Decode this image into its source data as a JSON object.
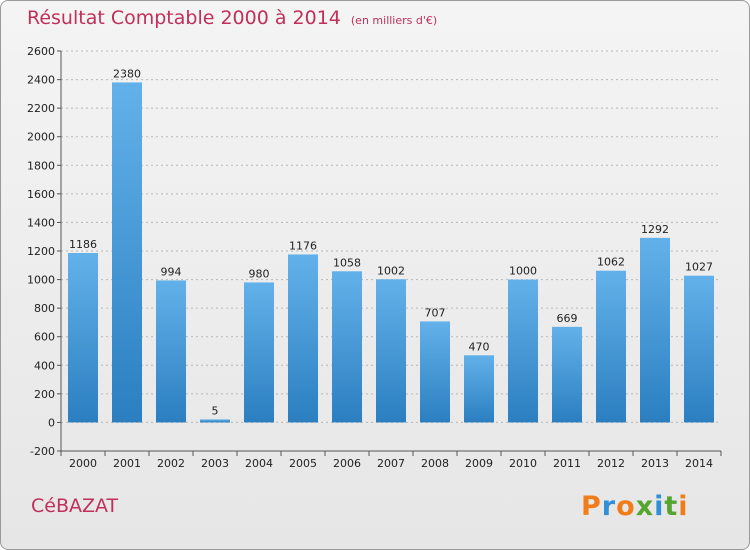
{
  "header": {
    "title": "Résultat Comptable 2000 à 2014",
    "unit": "(en milliers d'€)"
  },
  "footer": {
    "commune": "CéBAZAT",
    "brand": "Proxiti"
  },
  "colors": {
    "title": "#c0305a",
    "bar_top": "#63b1ea",
    "bar_bottom": "#2b7fc0",
    "brand_letters": [
      "#f07d1a",
      "#2f8fd8",
      "#f07d1a",
      "#55a530",
      "#2f8fd8",
      "#55a530",
      "#f07d1a"
    ]
  },
  "chart_data": {
    "type": "bar",
    "title": "Résultat Comptable 2000 à 2014",
    "subtitle": "(en milliers d'€)",
    "categories": [
      "2000",
      "2001",
      "2002",
      "2003",
      "2004",
      "2005",
      "2006",
      "2007",
      "2008",
      "2009",
      "2010",
      "2011",
      "2012",
      "2013",
      "2014"
    ],
    "values": [
      1186,
      2380,
      994,
      5,
      980,
      1176,
      1058,
      1002,
      707,
      470,
      1000,
      669,
      1062,
      1292,
      1027
    ],
    "data_labels": [
      "1186",
      "2380",
      "994",
      "5",
      "980",
      "1176",
      "1058",
      "1002",
      "707",
      "470",
      "1000",
      "669",
      "1062",
      "1292",
      "1027"
    ],
    "ylim": [
      -200,
      2600
    ],
    "yticks": [
      -200,
      0,
      200,
      400,
      600,
      800,
      1000,
      1200,
      1400,
      1600,
      1800,
      2000,
      2200,
      2400,
      2600
    ],
    "grid": true,
    "xlabel": "",
    "ylabel": ""
  }
}
